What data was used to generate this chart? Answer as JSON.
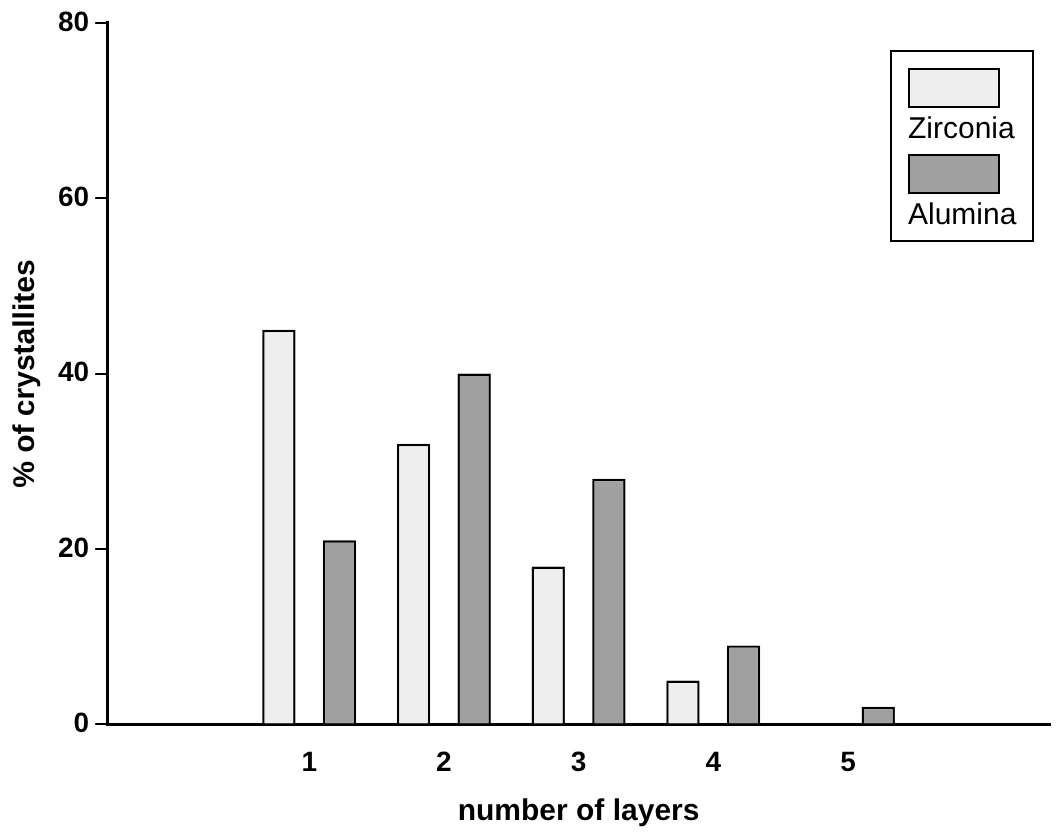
{
  "chart_data": {
    "type": "bar",
    "xlabel": "number of layers",
    "ylabel": "% of crystallites",
    "categories": [
      null,
      "1",
      "2",
      "3",
      "4",
      "5",
      null
    ],
    "series": [
      {
        "name": "Zirconia",
        "color": "#eeeeee",
        "values": [
          0,
          45,
          32,
          18,
          5,
          0,
          0
        ]
      },
      {
        "name": "Alumina",
        "color": "#a0a0a0",
        "values": [
          0,
          21,
          40,
          28,
          9,
          2,
          0
        ]
      }
    ],
    "ylim": [
      0,
      80
    ],
    "yticks": [
      0,
      20,
      40,
      60,
      80
    ],
    "grid": false,
    "legend": "top right"
  }
}
